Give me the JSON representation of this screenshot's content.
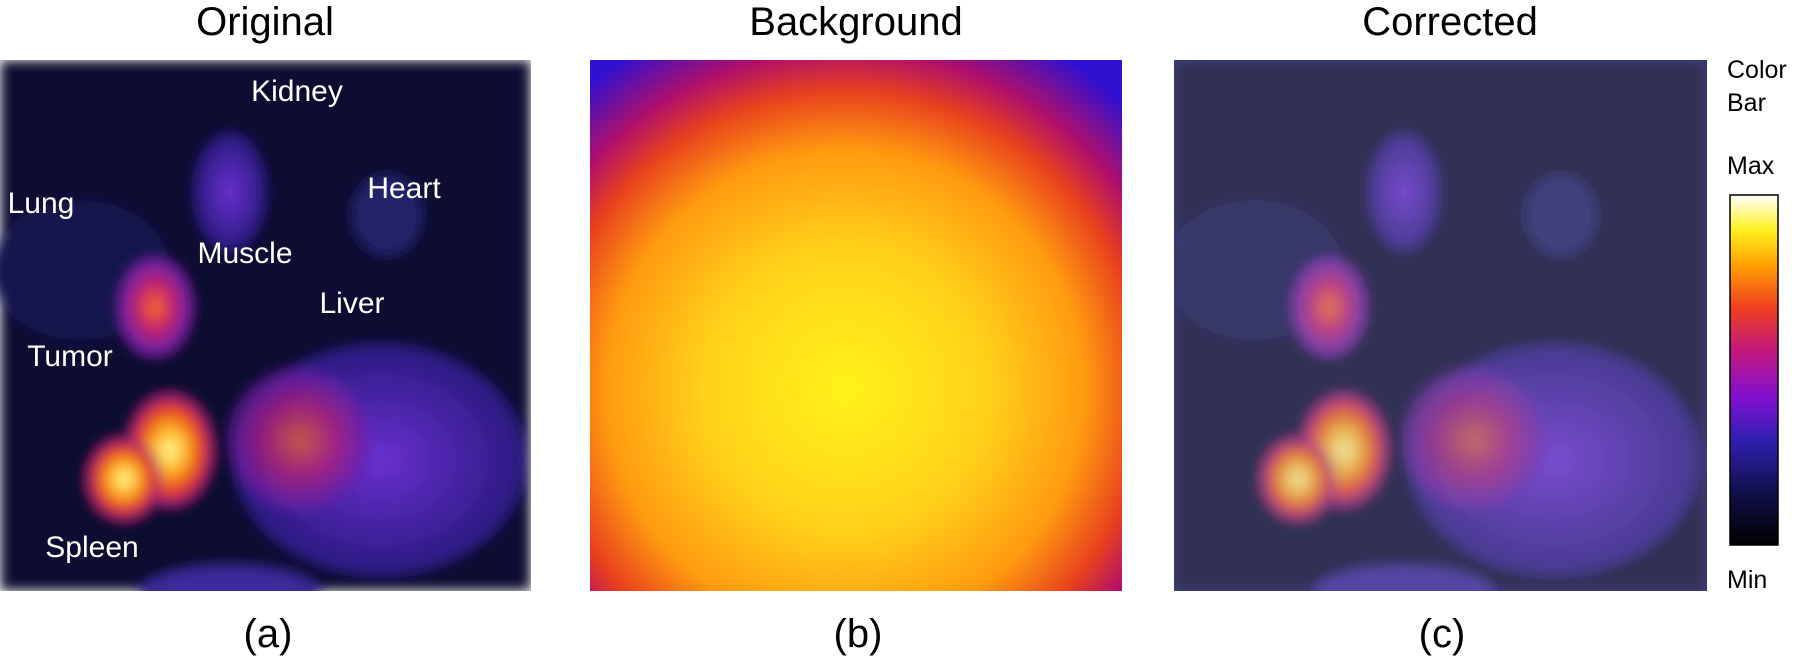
{
  "panels": [
    {
      "title": "Original",
      "caption": "(a)",
      "labels": [
        "Kidney",
        "Heart",
        "Lung",
        "Muscle",
        "Liver",
        "Tumor",
        "Spleen"
      ]
    },
    {
      "title": "Background",
      "caption": "(b)"
    },
    {
      "title": "Corrected",
      "caption": "(c)"
    }
  ],
  "color_bar": {
    "title": "Color Bar",
    "max": "Max",
    "min": "Min"
  }
}
